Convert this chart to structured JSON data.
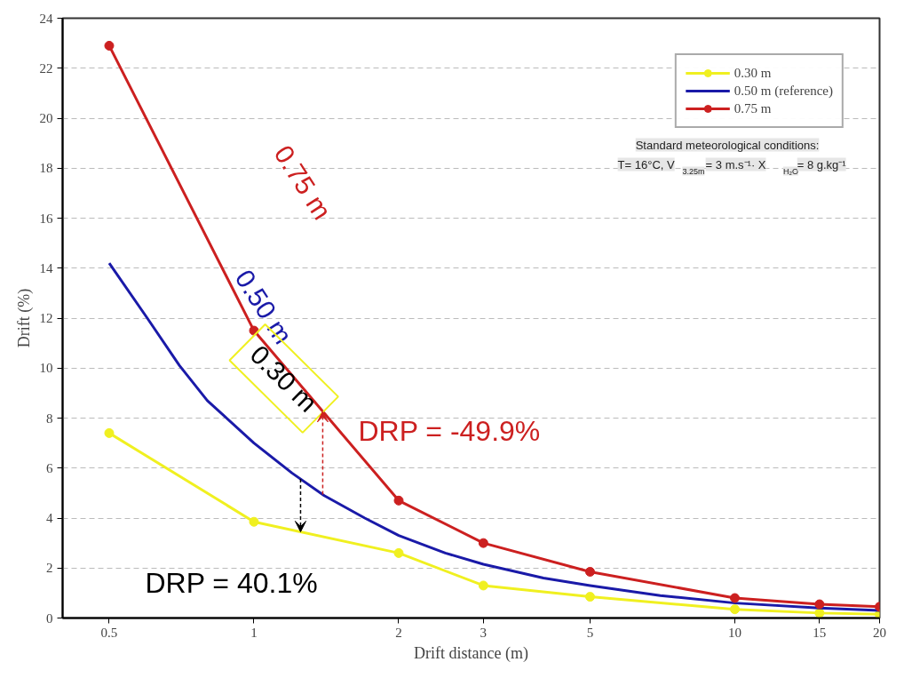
{
  "chart_data": {
    "type": "line",
    "xlabel": "Drift distance (m)",
    "ylabel": "Drift (%)",
    "log": "x",
    "xlim": [
      0.4,
      20
    ],
    "xticks": [
      0.5,
      1,
      2,
      3,
      5,
      10,
      15,
      20
    ],
    "ylim": [
      0,
      24
    ],
    "yticks": [
      0,
      2,
      4,
      6,
      8,
      10,
      12,
      14,
      16,
      18,
      20,
      22,
      24
    ],
    "grid": "y",
    "legend": "top right",
    "series": [
      {
        "name": "0.30 m",
        "color": "#f0f020",
        "marker": "circle",
        "x": [
          0.5,
          1,
          2,
          3,
          5,
          10,
          15,
          20
        ],
        "values": [
          7.4,
          3.85,
          2.6,
          1.3,
          0.85,
          0.35,
          0.2,
          0.15
        ]
      },
      {
        "name": "0.50 m (reference)",
        "color": "#1a1aa8",
        "marker": "none",
        "x": [
          0.5,
          0.6,
          0.7,
          0.8,
          1,
          1.2,
          1.4,
          1.7,
          2,
          2.5,
          3,
          4,
          5,
          7,
          10,
          15,
          20
        ],
        "values": [
          14.2,
          12.0,
          10.1,
          8.7,
          7.0,
          5.8,
          4.9,
          4.0,
          3.3,
          2.6,
          2.15,
          1.6,
          1.3,
          0.9,
          0.6,
          0.4,
          0.3
        ]
      },
      {
        "name": "0.75 m",
        "color": "#cc2020",
        "marker": "circle",
        "x": [
          0.5,
          1,
          2,
          3,
          5,
          10,
          15,
          20
        ],
        "values": [
          22.9,
          11.5,
          4.7,
          3.0,
          1.85,
          0.8,
          0.55,
          0.45
        ]
      }
    ],
    "annotations": [
      "0.75 m",
      "0.50 m",
      "0.30 m",
      "DRP = -49.9%",
      "DRP = 40.1%",
      "Standard meteorological conditions:",
      "T= 16°C, V$_{3.25m}$= 3 m.s⁻¹· X$_{H₂O}$= 8 g.kg⁻¹"
    ]
  }
}
